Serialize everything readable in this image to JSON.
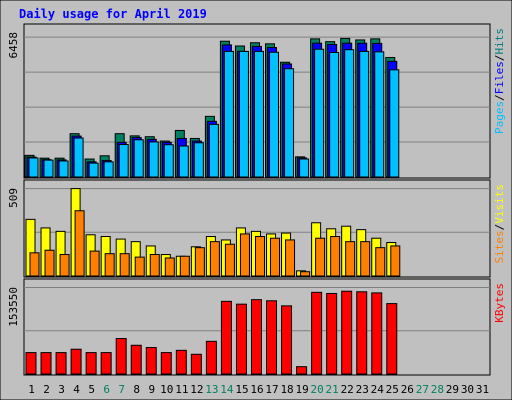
{
  "chart_data": {
    "type": "bar",
    "title": "Daily usage for April 2019",
    "x": [
      "1",
      "2",
      "3",
      "4",
      "5",
      "6",
      "7",
      "8",
      "9",
      "10",
      "11",
      "12",
      "13",
      "14",
      "15",
      "16",
      "17",
      "18",
      "19",
      "20",
      "21",
      "22",
      "23",
      "24",
      "25",
      "26",
      "27",
      "28",
      "29",
      "30",
      "31"
    ],
    "weekend_days": [
      6,
      7,
      13,
      14,
      20,
      21,
      27,
      28
    ],
    "panels": [
      {
        "id": "hits-files-pages",
        "max_label": "6458",
        "ymax": 6458,
        "legend": [
          {
            "text": "Pages",
            "color": "#00c0ff"
          },
          {
            "text": "/",
            "color": "#000000"
          },
          {
            "text": "Files",
            "color": "#0000ff"
          },
          {
            "text": "/",
            "color": "#000000"
          },
          {
            "text": "Hits",
            "color": "#008080"
          }
        ],
        "series": [
          {
            "name": "Hits",
            "color": "#008060",
            "values": [
              1000,
              870,
              870,
              2000,
              830,
              980,
              2000,
              1900,
              1860,
              1660,
              2150,
              1780,
              2800,
              6270,
              6050,
              6200,
              6150,
              5300,
              930,
              6380,
              6250,
              6400,
              6330,
              6380,
              5520
            ]
          },
          {
            "name": "Files",
            "color": "#0000ff",
            "values": [
              920,
              800,
              790,
              1890,
              700,
              760,
              1600,
              1820,
              1740,
              1600,
              1780,
              1660,
              2570,
              6100,
              5800,
              6030,
              5980,
              5220,
              880,
              6180,
              6120,
              6180,
              6180,
              6170,
              5340
            ]
          },
          {
            "name": "Pages",
            "color": "#00c0ff",
            "values": [
              880,
              780,
              740,
              1800,
              640,
              700,
              1500,
              1720,
              1620,
              1490,
              1430,
              1580,
              2430,
              5800,
              5800,
              5800,
              5760,
              5000,
              830,
              5900,
              5750,
              5880,
              5800,
              5780,
              4950
            ]
          }
        ]
      },
      {
        "id": "visits-sites",
        "max_label": "509",
        "ymax": 509,
        "legend": [
          {
            "text": "Sites",
            "color": "#ff8000"
          },
          {
            "text": "/",
            "color": "#000000"
          },
          {
            "text": "Visits",
            "color": "#ffff00"
          }
        ],
        "series": [
          {
            "name": "Visits",
            "color": "#ffff00",
            "values": [
              330,
              280,
              260,
              509,
              240,
              230,
              215,
              200,
              175,
              125,
              115,
              170,
              230,
              210,
              280,
              260,
              245,
              250,
              30,
              310,
              275,
              290,
              270,
              220,
              195
            ]
          },
          {
            "name": "Sites",
            "color": "#ff8000",
            "values": [
              135,
              150,
              125,
              380,
              145,
              130,
              130,
              110,
              125,
              105,
              115,
              165,
              200,
              185,
              245,
              230,
              220,
              210,
              25,
              220,
              230,
              200,
              200,
              165,
              175
            ]
          }
        ]
      },
      {
        "id": "kbytes",
        "max_label": "153550",
        "ymax": 153550,
        "legend": [
          {
            "text": "KBytes",
            "color": "#ff0000"
          }
        ],
        "series": [
          {
            "name": "KBytes",
            "color": "#ff0000",
            "values": [
              38000,
              38000,
              38000,
              44000,
              38000,
              38000,
              63000,
              51000,
              47000,
              38000,
              42000,
              35000,
              58000,
              129000,
              124000,
              132000,
              130000,
              121000,
              13000,
              145000,
              143000,
              147000,
              146000,
              144000,
              125000
            ]
          }
        ]
      }
    ]
  }
}
